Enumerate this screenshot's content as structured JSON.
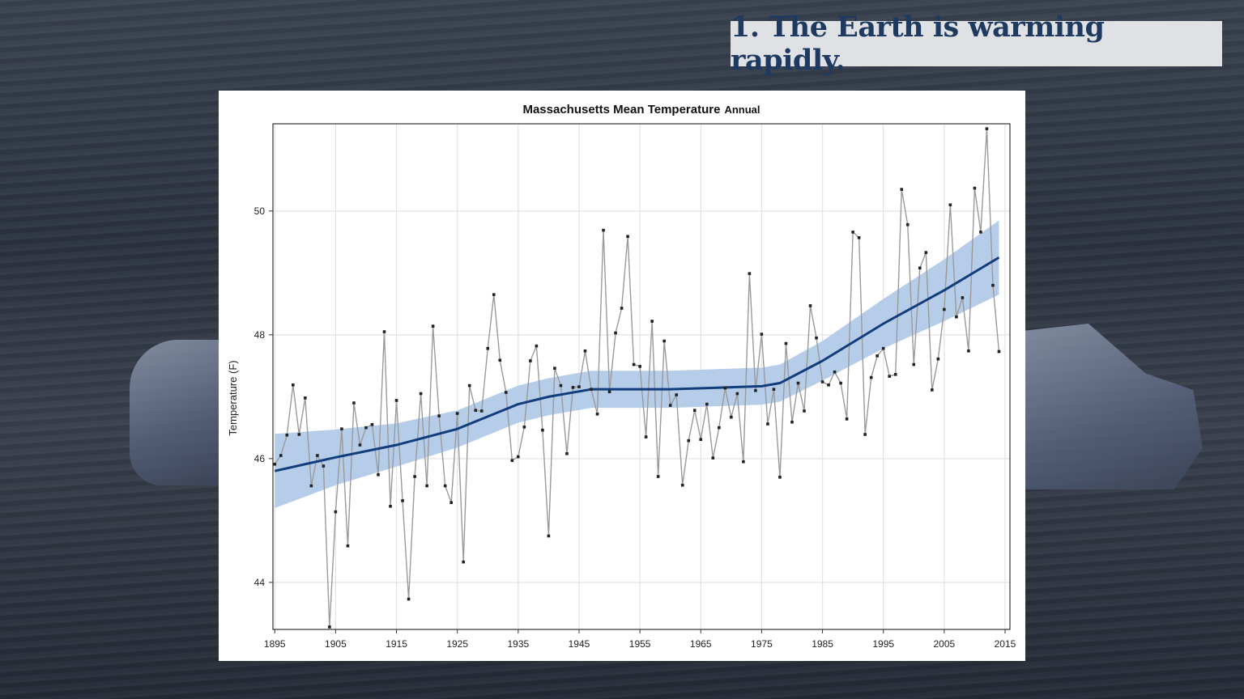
{
  "slide": {
    "heading": "1. The Earth is warming rapidly."
  },
  "colors": {
    "heading_text": "#1f3a60",
    "heading_bg": "#dfe1e5",
    "trend": "#123d7d",
    "band": "#b6cde9",
    "observed": "#9a9a9a"
  },
  "chart_data": {
    "type": "line",
    "title": "Massachusetts Mean Temperature",
    "title_suffix": "Annual",
    "xlabel": "",
    "ylabel": "Temperature (F)",
    "xlim": [
      1894.7,
      2015.8
    ],
    "ylim": [
      43.24,
      51.41
    ],
    "xticks": [
      1895,
      1905,
      1915,
      1925,
      1935,
      1945,
      1955,
      1965,
      1975,
      1985,
      1995,
      2005,
      2015
    ],
    "yticks": [
      44,
      46,
      48,
      50
    ],
    "grid": true,
    "observed": {
      "start_year": 1895,
      "values": [
        45.91,
        46.05,
        46.38,
        47.19,
        46.39,
        46.98,
        45.56,
        46.05,
        45.88,
        43.28,
        45.14,
        46.48,
        44.59,
        46.9,
        46.22,
        46.5,
        46.55,
        45.74,
        48.05,
        45.23,
        46.94,
        45.32,
        43.73,
        45.71,
        47.05,
        45.56,
        48.14,
        46.69,
        45.56,
        45.29,
        46.73,
        44.33,
        47.18,
        46.78,
        46.77,
        47.78,
        48.65,
        47.59,
        47.07,
        45.97,
        46.03,
        46.51,
        47.58,
        47.82,
        46.46,
        44.75,
        47.46,
        47.18,
        46.08,
        47.15,
        47.16,
        47.74,
        47.12,
        46.72,
        49.69,
        47.08,
        48.03,
        48.43,
        49.59,
        47.52,
        47.49,
        46.35,
        48.22,
        45.71,
        47.9,
        46.86,
        47.03,
        45.57,
        46.29,
        46.78,
        46.31,
        46.88,
        46.01,
        46.5,
        47.14,
        46.67,
        47.05,
        45.95,
        48.99,
        47.1,
        48.01,
        46.56,
        47.12,
        45.7,
        47.86,
        46.59,
        47.22,
        46.77,
        48.47,
        47.95,
        47.24,
        47.19,
        47.4,
        47.22,
        46.64,
        49.66,
        49.57,
        46.39,
        47.31,
        47.66,
        47.78,
        47.33,
        47.36,
        50.35,
        49.78,
        47.52,
        49.08,
        49.33,
        47.11,
        47.61,
        48.41,
        50.1,
        48.29,
        48.6,
        47.74,
        50.37,
        49.66,
        51.33,
        48.8,
        47.73
      ]
    },
    "trend": {
      "x": [
        1895,
        1905,
        1915,
        1925,
        1935,
        1940,
        1947,
        1960,
        1975,
        1978,
        1985,
        1995,
        2005,
        2014
      ],
      "y": [
        45.8,
        46.02,
        46.22,
        46.48,
        46.88,
        47.0,
        47.12,
        47.12,
        47.17,
        47.22,
        47.58,
        48.18,
        48.72,
        49.25
      ],
      "band_halfwidth": [
        0.6,
        0.45,
        0.35,
        0.3,
        0.3,
        0.3,
        0.3,
        0.3,
        0.3,
        0.3,
        0.32,
        0.4,
        0.5,
        0.6
      ]
    }
  }
}
